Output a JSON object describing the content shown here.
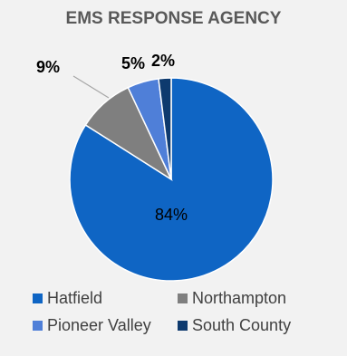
{
  "chart_data": {
    "type": "pie",
    "title": "EMS RESPONSE AGENCY",
    "categories": [
      "Hatfield",
      "Northampton",
      "Pioneer Valley",
      "South County"
    ],
    "values": [
      84,
      9,
      5,
      2
    ],
    "data_labels": [
      "84%",
      "9%",
      "5%",
      "2%"
    ],
    "colors": [
      "#0f65c4",
      "#7f7f7f",
      "#4f7fd8",
      "#0e3a6e"
    ],
    "legend_position": "bottom"
  }
}
